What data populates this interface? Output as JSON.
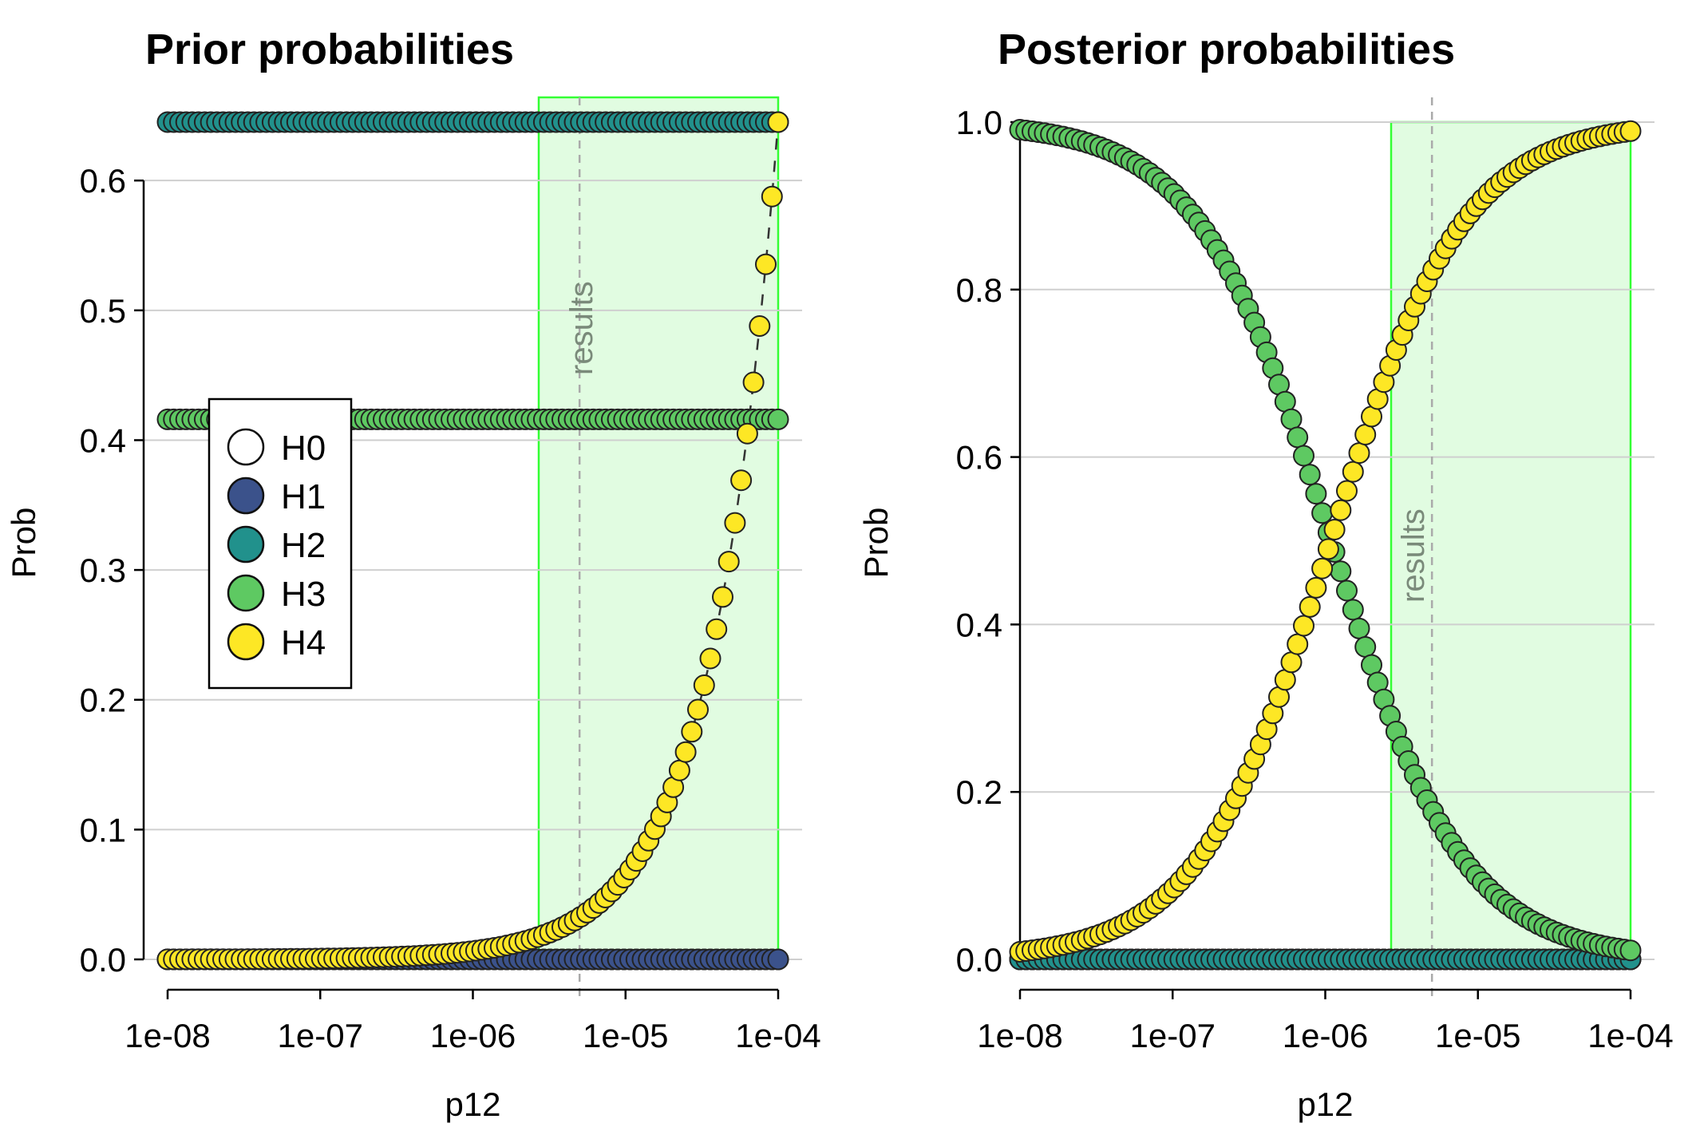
{
  "colors": {
    "H0": "#ffffff",
    "H1": "#3b528b",
    "H2": "#21918c",
    "H3": "#5ec962",
    "H4": "#fde725",
    "highlight_fill": "#e1fce1",
    "highlight_stroke": "#33ff33",
    "grid": "#cfcfcf",
    "annotation_line": "#aaaaaa",
    "annotation_text": "#7a8a7a",
    "marker_edge": "#222222"
  },
  "chart_data": [
    {
      "type": "scatter",
      "title": "Prior probabilities",
      "xlabel": "p12",
      "ylabel": "Prob",
      "x_scale": "log",
      "xlim": [
        1e-08,
        0.0001
      ],
      "ylim": [
        0,
        0.645
      ],
      "x_ticks": [
        1e-08,
        1e-07,
        1e-06,
        1e-05,
        0.0001
      ],
      "x_tick_labels": [
        "1e-08",
        "1e-07",
        "1e-06",
        "1e-05",
        "1e-04"
      ],
      "y_ticks": [
        0,
        0.1,
        0.2,
        0.3,
        0.4,
        0.5,
        0.6
      ],
      "y_tick_labels": [
        "0.0",
        "0.1",
        "0.2",
        "0.3",
        "0.4",
        "0.5",
        "0.6"
      ],
      "grid": "horizontal",
      "legend": {
        "position": "center-left",
        "entries": [
          "H0",
          "H1",
          "H2",
          "H3",
          "H4"
        ]
      },
      "highlight_region": {
        "x": [
          2.7e-06,
          0.0001
        ]
      },
      "annotation": {
        "label": "results",
        "x": 5e-06,
        "style": "dashed vertical line"
      },
      "dashed_series": "H4",
      "n_points": 100,
      "series": [
        {
          "name": "H0",
          "formula": "constant",
          "params": {
            "value": 0
          }
        },
        {
          "name": "H1",
          "formula": "constant",
          "params": {
            "value": 0
          }
        },
        {
          "name": "H2",
          "formula": "constant",
          "params": {
            "value": 0.645
          }
        },
        {
          "name": "H3",
          "formula": "constant",
          "params": {
            "value": 0.416
          }
        },
        {
          "name": "H4",
          "formula": "linear",
          "params": {
            "slope": 6450
          }
        }
      ]
    },
    {
      "type": "scatter",
      "title": "Posterior probabilities",
      "xlabel": "p12",
      "ylabel": "Prob",
      "x_scale": "log",
      "xlim": [
        1e-08,
        0.0001
      ],
      "ylim": [
        0,
        1.0
      ],
      "x_ticks": [
        1e-08,
        1e-07,
        1e-06,
        1e-05,
        0.0001
      ],
      "x_tick_labels": [
        "1e-08",
        "1e-07",
        "1e-06",
        "1e-05",
        "1e-04"
      ],
      "y_ticks": [
        0,
        0.2,
        0.4,
        0.6,
        0.8,
        1.0
      ],
      "y_tick_labels": [
        "0.0",
        "0.2",
        "0.4",
        "0.6",
        "0.8",
        "1.0"
      ],
      "grid": "horizontal",
      "highlight_region": {
        "x": [
          2.7e-06,
          0.0001
        ]
      },
      "annotation": {
        "label": "results",
        "x": 5e-06,
        "style": "dashed vertical line"
      },
      "n_points": 100,
      "series": [
        {
          "name": "H0",
          "formula": "constant",
          "params": {
            "value": 0
          }
        },
        {
          "name": "H1",
          "formula": "constant",
          "params": {
            "value": 0
          }
        },
        {
          "name": "H2",
          "formula": "constant",
          "params": {
            "value": 0
          }
        },
        {
          "name": "H3",
          "formula": "logistic_complement",
          "params": {
            "k": 1.09e-06
          }
        },
        {
          "name": "H4",
          "formula": "logistic",
          "params": {
            "k": 1.09e-06
          }
        }
      ]
    }
  ]
}
